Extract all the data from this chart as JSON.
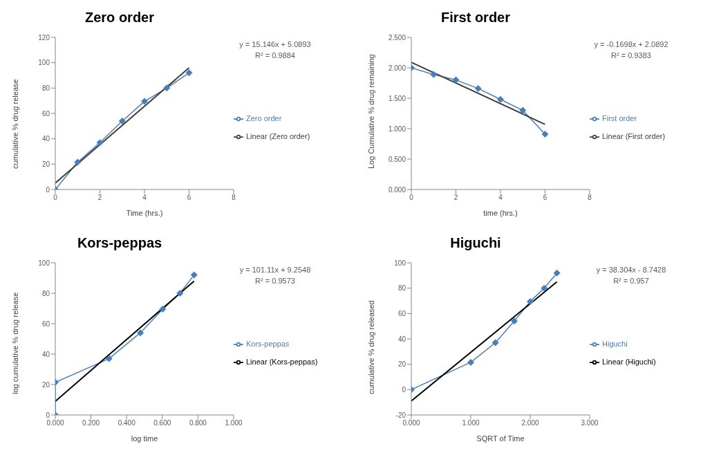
{
  "chart_data": [
    {
      "type": "line",
      "title": "Zero order",
      "xlabel": "Time (hrs.)",
      "ylabel": "cumulative % drug release",
      "legend": "right",
      "annotations": [
        "y = 15.146x + 5.0893",
        "R² = 0.9884"
      ],
      "xlim": [
        0,
        8
      ],
      "xticks": [
        0,
        2,
        4,
        6,
        8
      ],
      "ylim": [
        0,
        120
      ],
      "yticks": [
        0,
        20,
        40,
        60,
        80,
        100,
        120
      ],
      "line_style": "solid",
      "series": [
        {
          "name": "Zero order",
          "marker": "diamond",
          "color": "#4a7ebb",
          "x": [
            0,
            1,
            2,
            3,
            4,
            5,
            6
          ],
          "values": [
            0,
            21.5,
            37,
            54,
            69.5,
            80,
            92
          ]
        },
        {
          "name": "Linear (Zero order)",
          "marker": "none",
          "color": "#404040",
          "x": [
            0,
            6
          ],
          "values": [
            5.1,
            96
          ]
        }
      ]
    },
    {
      "type": "line",
      "title": "First order",
      "xlabel": "time (hrs.)",
      "ylabel": "Log Cumulative % drug remaining",
      "legend": "right",
      "annotations": [
        "y = -0.1698x + 2.0892",
        "R² = 0.9383"
      ],
      "xlim": [
        0,
        8
      ],
      "xticks": [
        0,
        2,
        4,
        6,
        8
      ],
      "ylim": [
        0,
        2.5
      ],
      "yticks": [
        {
          "value": 0,
          "label": "0.000"
        },
        {
          "value": 0.5,
          "label": "0.500"
        },
        {
          "value": 1,
          "label": "1.000"
        },
        {
          "value": 1.5,
          "label": "1.500"
        },
        {
          "value": 2,
          "label": "2.000"
        },
        {
          "value": 2.5,
          "label": "2.500"
        }
      ],
      "line_style": "solid",
      "series": [
        {
          "name": "First order",
          "marker": "diamond",
          "color": "#4a7ebb",
          "x": [
            0,
            1,
            2,
            3,
            4,
            5,
            6
          ],
          "values": [
            2.0,
            1.89,
            1.8,
            1.66,
            1.48,
            1.3,
            0.91
          ]
        },
        {
          "name": "Linear (First order)",
          "marker": "none",
          "color": "#404040",
          "x": [
            0,
            6
          ],
          "values": [
            2.09,
            1.07
          ]
        }
      ]
    },
    {
      "type": "line",
      "title": "Kors-peppas",
      "xlabel": "log time",
      "ylabel": "log cumulative % drug release",
      "legend": "right",
      "annotations": [
        "y = 101.11x + 9.2548",
        "R² = 0.9573"
      ],
      "xlim": [
        0,
        1
      ],
      "xticks": [
        {
          "value": 0,
          "label": "0.000"
        },
        {
          "value": 0.2,
          "label": "0.200"
        },
        {
          "value": 0.4,
          "label": "0.400"
        },
        {
          "value": 0.6,
          "label": "0.600"
        },
        {
          "value": 0.8,
          "label": "0.800"
        },
        {
          "value": 1,
          "label": "1.000"
        }
      ],
      "ylim": [
        0,
        100
      ],
      "yticks": [
        0,
        20,
        40,
        60,
        80,
        100
      ],
      "line_style": "solid",
      "series": [
        {
          "name": "Kors-peppas",
          "marker": "diamond",
          "color": "#4a7ebb",
          "x": [
            0,
            0,
            0.301,
            0.477,
            0.602,
            0.699,
            0.778
          ],
          "values": [
            0,
            21.5,
            37,
            54,
            69.5,
            80,
            92
          ]
        },
        {
          "name": "Linear (Kors-peppas)",
          "marker": "none",
          "color": "#000000",
          "x": [
            0,
            0.778
          ],
          "values": [
            9,
            88
          ]
        }
      ]
    },
    {
      "type": "line",
      "title": "Higuchi",
      "xlabel": "SQRT of Time",
      "ylabel": "cumulative % drug released",
      "legend": "right",
      "annotations": [
        "y = 38.304x - 8.7428",
        "R² = 0.957"
      ],
      "xlim": [
        0,
        3
      ],
      "xticks": [
        {
          "value": 0,
          "label": "0.000"
        },
        {
          "value": 1,
          "label": "1.000"
        },
        {
          "value": 2,
          "label": "2.000"
        },
        {
          "value": 3,
          "label": "3.000"
        }
      ],
      "ylim": [
        -20,
        100
      ],
      "yticks": [
        -20,
        0,
        20,
        40,
        60,
        80,
        100
      ],
      "line_style": "solid",
      "series": [
        {
          "name": "Higuchi",
          "marker": "diamond",
          "color": "#4a7ebb",
          "x": [
            0,
            1,
            1.414,
            1.732,
            2,
            2.236,
            2.449
          ],
          "values": [
            0,
            21.5,
            37,
            54,
            69.5,
            80,
            92
          ]
        },
        {
          "name": "Linear (Higuchi)",
          "marker": "none",
          "color": "#000000",
          "x": [
            0,
            2.449
          ],
          "values": [
            -9,
            85
          ]
        }
      ]
    }
  ]
}
